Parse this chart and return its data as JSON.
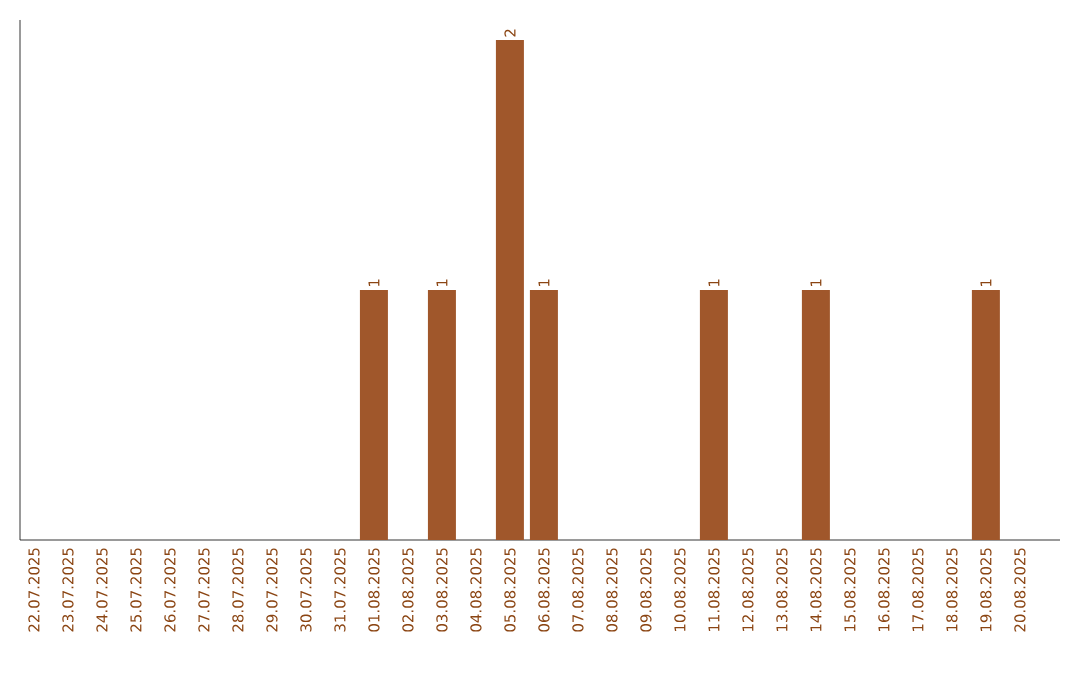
{
  "chart_data": {
    "type": "bar",
    "categories": [
      "22.07.2025",
      "23.07.2025",
      "24.07.2025",
      "25.07.2025",
      "26.07.2025",
      "27.07.2025",
      "28.07.2025",
      "29.07.2025",
      "30.07.2025",
      "31.07.2025",
      "01.08.2025",
      "02.08.2025",
      "03.08.2025",
      "04.08.2025",
      "05.08.2025",
      "06.08.2025",
      "07.08.2025",
      "08.08.2025",
      "09.08.2025",
      "10.08.2025",
      "11.08.2025",
      "12.08.2025",
      "13.08.2025",
      "14.08.2025",
      "15.08.2025",
      "16.08.2025",
      "17.08.2025",
      "18.08.2025",
      "19.08.2025",
      "20.08.2025"
    ],
    "values": [
      0,
      0,
      0,
      0,
      0,
      0,
      0,
      0,
      0,
      0,
      1,
      0,
      1,
      0,
      2,
      1,
      0,
      0,
      0,
      0,
      1,
      0,
      0,
      1,
      0,
      0,
      0,
      0,
      1,
      0
    ],
    "value_labels": [
      null,
      null,
      null,
      null,
      null,
      null,
      null,
      null,
      null,
      null,
      "1",
      null,
      "1",
      null,
      "2",
      "1",
      null,
      null,
      null,
      null,
      "1",
      null,
      null,
      "1",
      null,
      null,
      null,
      null,
      "1",
      null
    ],
    "color": "#a0572b"
  }
}
